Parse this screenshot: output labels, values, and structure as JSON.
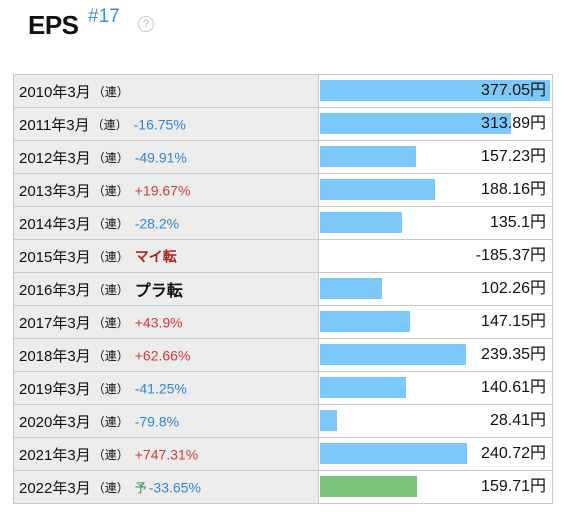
{
  "header": {
    "title": "EPS",
    "rank": "#17",
    "help_icon": "?"
  },
  "colors": {
    "bar": "#7cc8fb",
    "forecast_bar": "#7dc47d",
    "negative_change": "#2f86d6",
    "positive_change": "#d23b3b"
  },
  "bar_max": 377.05,
  "rows": [
    {
      "period": "2010年3月",
      "type": "（連）",
      "prefix": "",
      "change": "",
      "change_kind": "none",
      "amount": "377.05円",
      "value": 377.05,
      "forecast": false
    },
    {
      "period": "2011年3月",
      "type": "（連）",
      "prefix": "",
      "change": "-16.75%",
      "change_kind": "neg",
      "amount": "313.89円",
      "value": 313.89,
      "forecast": false
    },
    {
      "period": "2012年3月",
      "type": "（連）",
      "prefix": "",
      "change": "-49.91%",
      "change_kind": "neg",
      "amount": "157.23円",
      "value": 157.23,
      "forecast": false
    },
    {
      "period": "2013年3月",
      "type": "（連）",
      "prefix": "",
      "change": "+19.67%",
      "change_kind": "pos",
      "amount": "188.16円",
      "value": 188.16,
      "forecast": false
    },
    {
      "period": "2014年3月",
      "type": "（連）",
      "prefix": "",
      "change": "-28.2%",
      "change_kind": "neg",
      "amount": "135.1円",
      "value": 135.1,
      "forecast": false
    },
    {
      "period": "2015年3月",
      "type": "（連）",
      "prefix": "",
      "change": "マイ転",
      "change_kind": "mai",
      "amount": "-185.37円",
      "value": -185.37,
      "forecast": false
    },
    {
      "period": "2016年3月",
      "type": "（連）",
      "prefix": "",
      "change": "プラ転",
      "change_kind": "pura",
      "amount": "102.26円",
      "value": 102.26,
      "forecast": false
    },
    {
      "period": "2017年3月",
      "type": "（連）",
      "prefix": "",
      "change": "+43.9%",
      "change_kind": "pos",
      "amount": "147.15円",
      "value": 147.15,
      "forecast": false
    },
    {
      "period": "2018年3月",
      "type": "（連）",
      "prefix": "",
      "change": "+62.66%",
      "change_kind": "pos",
      "amount": "239.35円",
      "value": 239.35,
      "forecast": false
    },
    {
      "period": "2019年3月",
      "type": "（連）",
      "prefix": "",
      "change": "-41.25%",
      "change_kind": "neg",
      "amount": "140.61円",
      "value": 140.61,
      "forecast": false
    },
    {
      "period": "2020年3月",
      "type": "（連）",
      "prefix": "",
      "change": "-79.8%",
      "change_kind": "neg",
      "amount": "28.41円",
      "value": 28.41,
      "forecast": false
    },
    {
      "period": "2021年3月",
      "type": "（連）",
      "prefix": "",
      "change": "+747.31%",
      "change_kind": "pos",
      "amount": "240.72円",
      "value": 240.72,
      "forecast": false
    },
    {
      "period": "2022年3月",
      "type": "（連）",
      "prefix": "予",
      "change": "-33.65%",
      "change_kind": "neg",
      "amount": "159.71円",
      "value": 159.71,
      "forecast": true
    }
  ]
}
